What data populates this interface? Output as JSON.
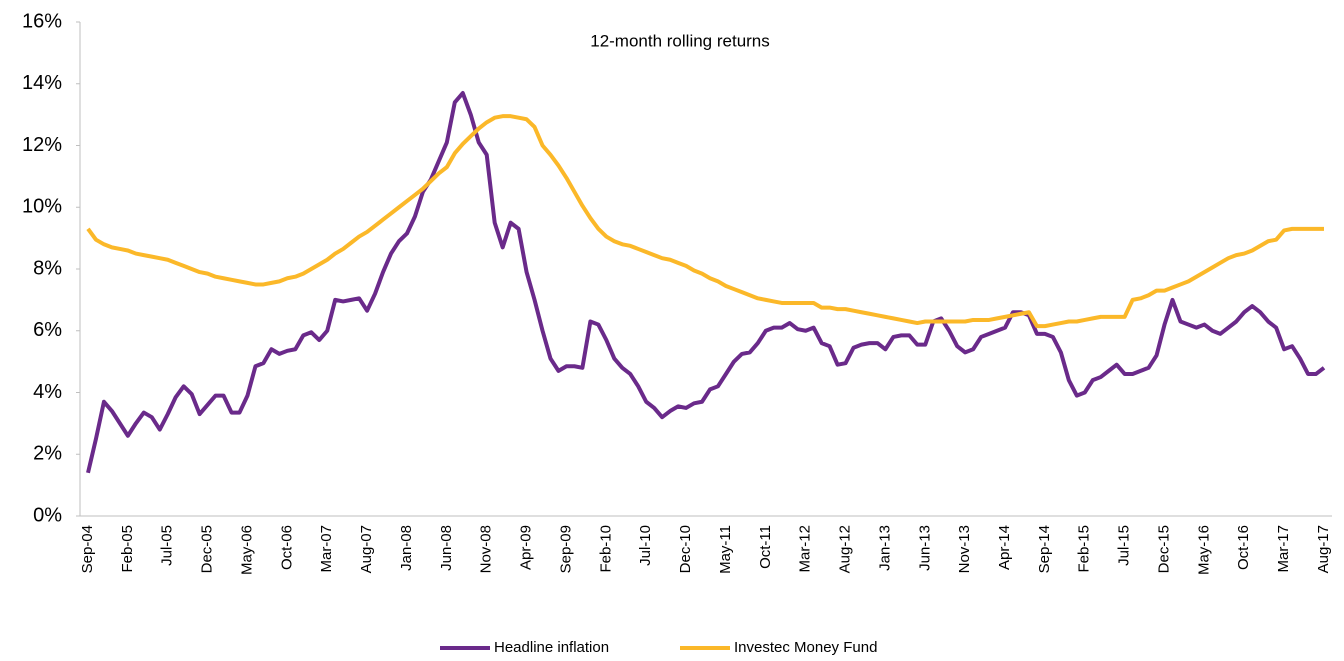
{
  "chart_data": {
    "type": "line",
    "title": "12-month rolling returns",
    "categories": [
      "Sep-04",
      null,
      null,
      null,
      null,
      "Feb-05",
      null,
      null,
      null,
      null,
      "Jul-05",
      null,
      null,
      null,
      null,
      "Dec-05",
      null,
      null,
      null,
      null,
      "May-06",
      null,
      null,
      null,
      null,
      "Oct-06",
      null,
      null,
      null,
      null,
      "Mar-07",
      null,
      null,
      null,
      null,
      "Aug-07",
      null,
      null,
      null,
      null,
      "Jan-08",
      null,
      null,
      null,
      null,
      "Jun-08",
      null,
      null,
      null,
      null,
      "Nov-08",
      null,
      null,
      null,
      null,
      "Apr-09",
      null,
      null,
      null,
      null,
      "Sep-09",
      null,
      null,
      null,
      null,
      "Feb-10",
      null,
      null,
      null,
      null,
      "Jul-10",
      null,
      null,
      null,
      null,
      "Dec-10",
      null,
      null,
      null,
      null,
      "May-11",
      null,
      null,
      null,
      null,
      "Oct-11",
      null,
      null,
      null,
      null,
      "Mar-12",
      null,
      null,
      null,
      null,
      "Aug-12",
      null,
      null,
      null,
      null,
      "Jan-13",
      null,
      null,
      null,
      null,
      "Jun-13",
      null,
      null,
      null,
      null,
      "Nov-13",
      null,
      null,
      null,
      null,
      "Apr-14",
      null,
      null,
      null,
      null,
      "Sep-14",
      null,
      null,
      null,
      null,
      "Feb-15",
      null,
      null,
      null,
      null,
      "Jul-15",
      null,
      null,
      null,
      null,
      "Dec-15",
      null,
      null,
      null,
      null,
      "May-16",
      null,
      null,
      null,
      null,
      "Oct-16",
      null,
      null,
      null,
      null,
      "Mar-17",
      null,
      null,
      null,
      null,
      "Aug-17"
    ],
    "series": [
      {
        "name": "Headline inflation",
        "color": "#6a2a8a",
        "values": [
          1.4,
          2.5,
          3.7,
          3.4,
          3.0,
          2.6,
          3.0,
          3.35,
          3.2,
          2.8,
          3.3,
          3.85,
          4.2,
          3.95,
          3.3,
          3.6,
          3.9,
          3.9,
          3.35,
          3.35,
          3.9,
          4.85,
          4.95,
          5.4,
          5.25,
          5.35,
          5.4,
          5.85,
          5.95,
          5.7,
          6.0,
          7.0,
          6.95,
          7.0,
          7.05,
          6.65,
          7.2,
          7.9,
          8.5,
          8.9,
          9.15,
          9.7,
          10.5,
          10.9,
          11.5,
          12.1,
          13.4,
          13.7,
          13.0,
          12.1,
          11.7,
          9.5,
          8.7,
          9.5,
          9.3,
          7.9,
          7.0,
          6.0,
          5.1,
          4.7,
          4.85,
          4.85,
          4.8,
          6.3,
          6.2,
          5.7,
          5.1,
          4.8,
          4.6,
          4.2,
          3.7,
          3.5,
          3.2,
          3.4,
          3.55,
          3.5,
          3.65,
          3.7,
          4.1,
          4.2,
          4.6,
          5.0,
          5.25,
          5.3,
          5.6,
          6.0,
          6.1,
          6.1,
          6.25,
          6.05,
          6.0,
          6.1,
          5.6,
          5.5,
          4.9,
          4.95,
          5.45,
          5.55,
          5.6,
          5.6,
          5.4,
          5.8,
          5.85,
          5.85,
          5.55,
          5.55,
          6.3,
          6.4,
          6.0,
          5.5,
          5.3,
          5.4,
          5.8,
          5.9,
          6.0,
          6.1,
          6.6,
          6.6,
          6.5,
          5.9,
          5.9,
          5.8,
          5.3,
          4.4,
          3.9,
          4.0,
          4.4,
          4.5,
          4.7,
          4.9,
          4.6,
          4.6,
          4.7,
          4.8,
          5.2,
          6.2,
          7.0,
          6.3,
          6.2,
          6.1,
          6.2,
          6.0,
          5.9,
          6.1,
          6.3,
          6.6,
          6.8,
          6.6,
          6.3,
          6.1,
          5.4,
          5.5,
          5.1,
          4.6,
          4.6,
          4.8
        ]
      },
      {
        "name": "Investec Money Fund",
        "color": "#fbb829",
        "values": [
          9.3,
          8.95,
          8.8,
          8.7,
          8.65,
          8.6,
          8.5,
          8.45,
          8.4,
          8.35,
          8.3,
          8.2,
          8.1,
          8.0,
          7.9,
          7.85,
          7.75,
          7.7,
          7.65,
          7.6,
          7.55,
          7.5,
          7.5,
          7.55,
          7.6,
          7.7,
          7.75,
          7.85,
          8.0,
          8.15,
          8.3,
          8.5,
          8.65,
          8.85,
          9.05,
          9.2,
          9.4,
          9.6,
          9.8,
          10.0,
          10.2,
          10.4,
          10.6,
          10.85,
          11.1,
          11.3,
          11.75,
          12.05,
          12.3,
          12.55,
          12.75,
          12.9,
          12.95,
          12.95,
          12.9,
          12.85,
          12.6,
          12.0,
          11.7,
          11.35,
          10.95,
          10.5,
          10.05,
          9.65,
          9.3,
          9.05,
          8.9,
          8.8,
          8.75,
          8.65,
          8.55,
          8.45,
          8.35,
          8.3,
          8.2,
          8.1,
          7.95,
          7.85,
          7.7,
          7.6,
          7.45,
          7.35,
          7.25,
          7.15,
          7.05,
          7.0,
          6.95,
          6.9,
          6.9,
          6.9,
          6.9,
          6.9,
          6.75,
          6.75,
          6.7,
          6.7,
          6.65,
          6.6,
          6.55,
          6.5,
          6.45,
          6.4,
          6.35,
          6.3,
          6.25,
          6.3,
          6.3,
          6.3,
          6.3,
          6.3,
          6.3,
          6.35,
          6.35,
          6.35,
          6.4,
          6.45,
          6.5,
          6.55,
          6.6,
          6.15,
          6.15,
          6.2,
          6.25,
          6.3,
          6.3,
          6.35,
          6.4,
          6.45,
          6.45,
          6.45,
          6.45,
          7.0,
          7.05,
          7.15,
          7.3,
          7.3,
          7.4,
          7.5,
          7.6,
          7.75,
          7.9,
          8.05,
          8.2,
          8.35,
          8.45,
          8.5,
          8.6,
          8.75,
          8.9,
          8.95,
          9.25,
          9.3,
          9.3,
          9.3,
          9.3,
          9.3
        ]
      }
    ],
    "ylim": [
      0,
      16
    ],
    "yticks": [
      {
        "value": 0,
        "label": "0%"
      },
      {
        "value": 2,
        "label": "2%"
      },
      {
        "value": 4,
        "label": "4%"
      },
      {
        "value": 6,
        "label": "6%"
      },
      {
        "value": 8,
        "label": "8%"
      },
      {
        "value": 10,
        "label": "10%"
      },
      {
        "value": 12,
        "label": "12%"
      },
      {
        "value": 14,
        "label": "14%"
      },
      {
        "value": 16,
        "label": "16%"
      }
    ],
    "grid": false
  }
}
